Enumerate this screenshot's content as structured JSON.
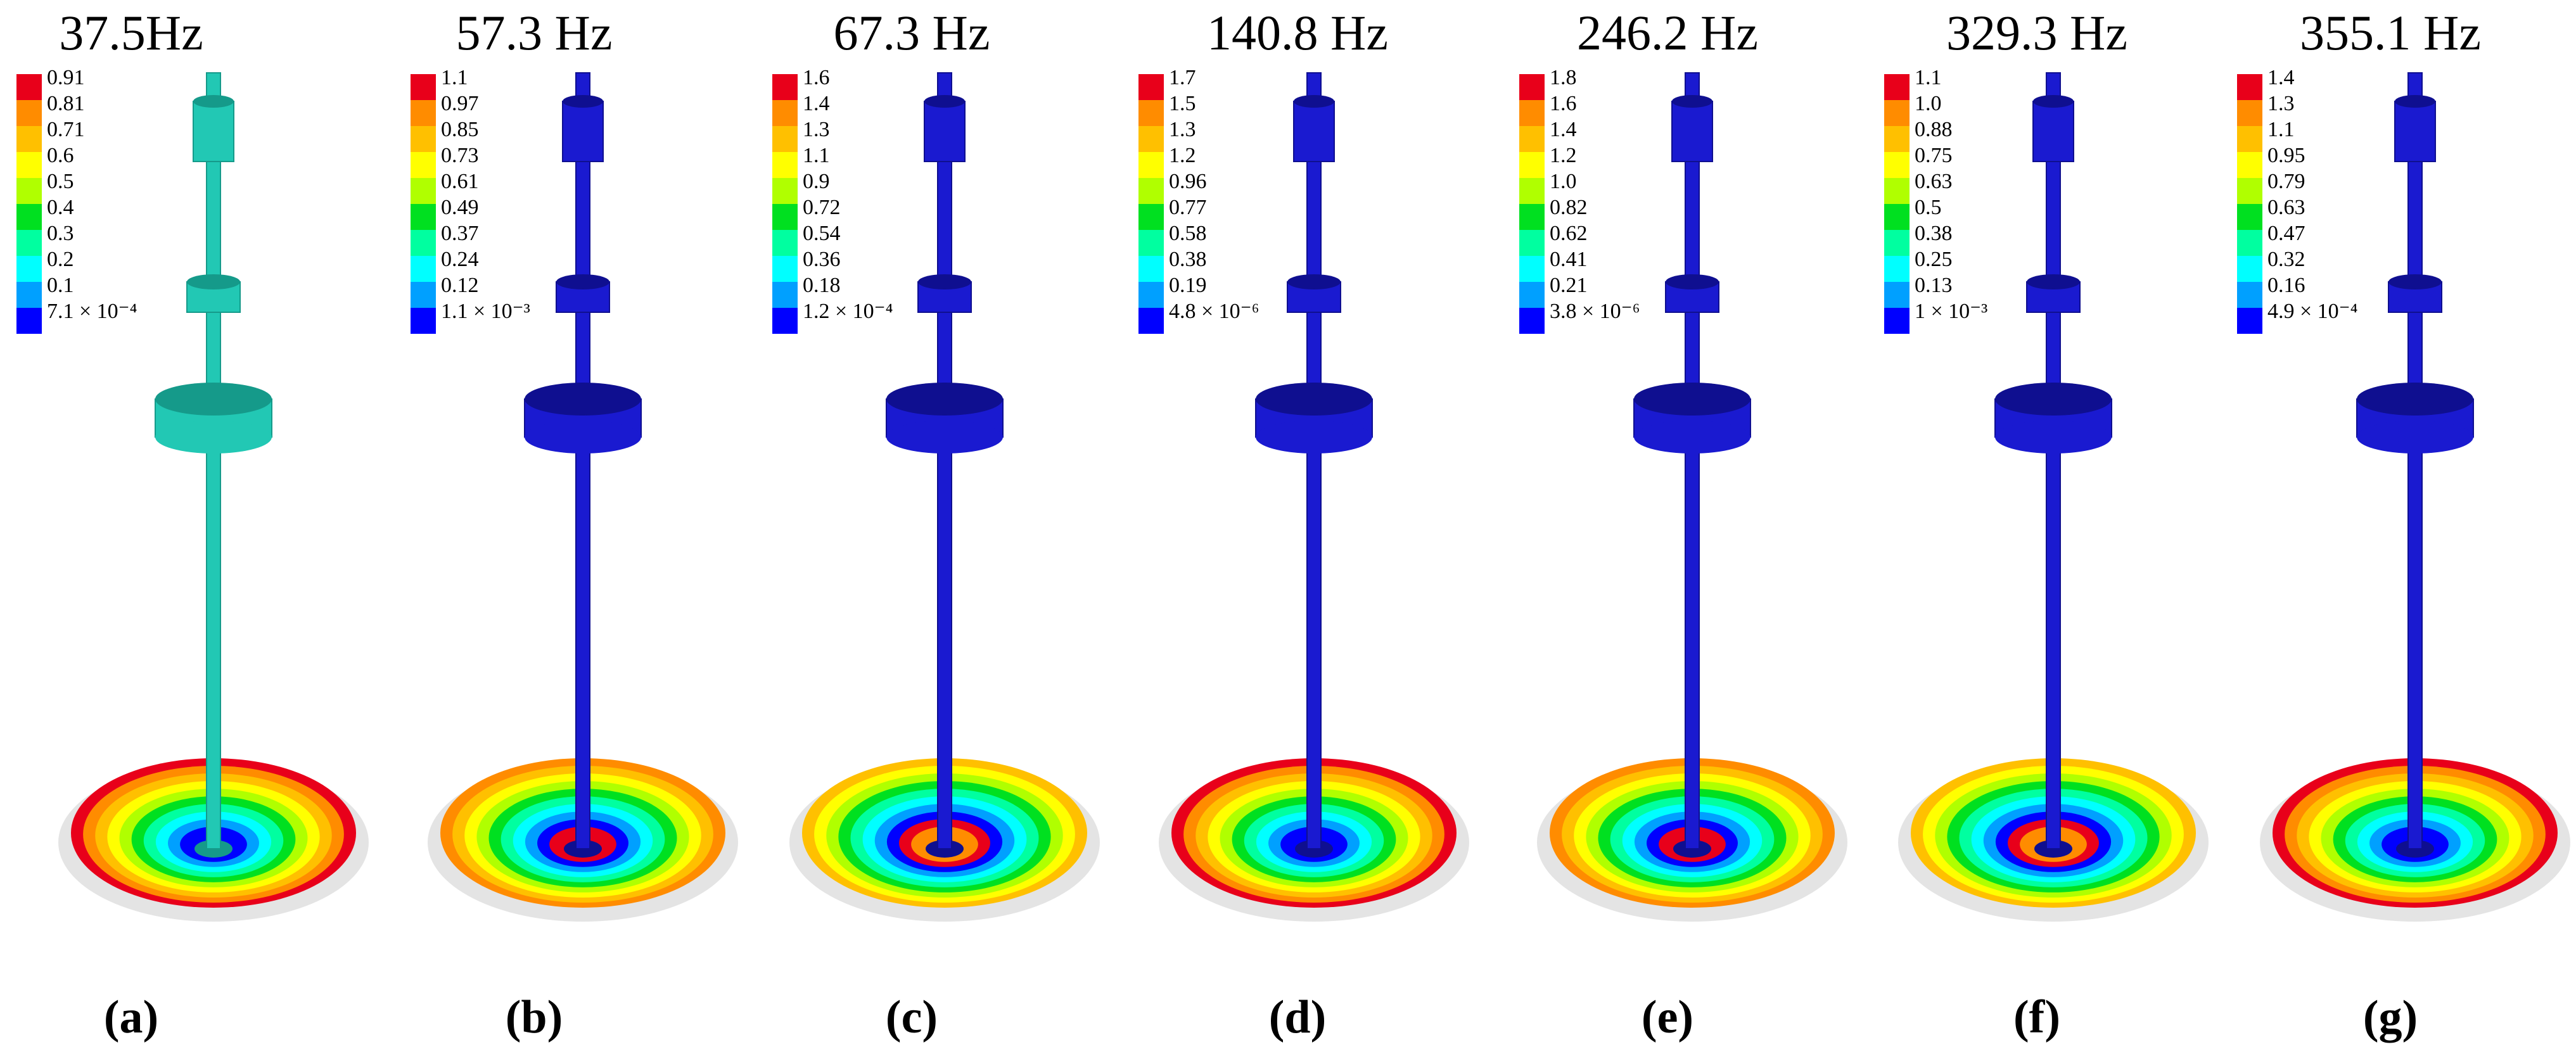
{
  "panels": [
    {
      "title": "37.5Hz",
      "legend": [
        "0.91",
        "0.81",
        "0.71",
        "0.6",
        "0.5",
        "0.4",
        "0.3",
        "0.2",
        "0.1",
        "7.1 × 10⁻⁴"
      ],
      "caption": "(a)"
    },
    {
      "title": "57.3 Hz",
      "legend": [
        "1.1",
        "0.97",
        "0.85",
        "0.73",
        "0.61",
        "0.49",
        "0.37",
        "0.24",
        "0.12",
        "1.1 × 10⁻³"
      ],
      "caption": "(b)"
    },
    {
      "title": "67.3 Hz",
      "legend": [
        "1.6",
        "1.4",
        "1.3",
        "1.1",
        "0.9",
        "0.72",
        "0.54",
        "0.36",
        "0.18",
        "1.2 × 10⁻⁴"
      ],
      "caption": "(c)"
    },
    {
      "title": "140.8 Hz",
      "legend": [
        "1.7",
        "1.5",
        "1.3",
        "1.2",
        "0.96",
        "0.77",
        "0.58",
        "0.38",
        "0.19",
        "4.8 × 10⁻⁶"
      ],
      "caption": "(d)"
    },
    {
      "title": "246.2 Hz",
      "legend": [
        "1.8",
        "1.6",
        "1.4",
        "1.2",
        "1.0",
        "0.82",
        "0.62",
        "0.41",
        "0.21",
        "3.8 × 10⁻⁶"
      ],
      "caption": "(e)"
    },
    {
      "title": "329.3 Hz",
      "legend": [
        "1.1",
        "1.0",
        "0.88",
        "0.75",
        "0.63",
        "0.5",
        "0.38",
        "0.25",
        "0.13",
        "1 × 10⁻³"
      ],
      "caption": "(f)"
    },
    {
      "title": "355.1 Hz",
      "legend": [
        "1.4",
        "1.3",
        "1.1",
        "0.95",
        "0.79",
        "0.63",
        "0.47",
        "0.32",
        "0.16",
        "4.9 × 10⁻⁴"
      ],
      "caption": "(g)"
    }
  ]
}
